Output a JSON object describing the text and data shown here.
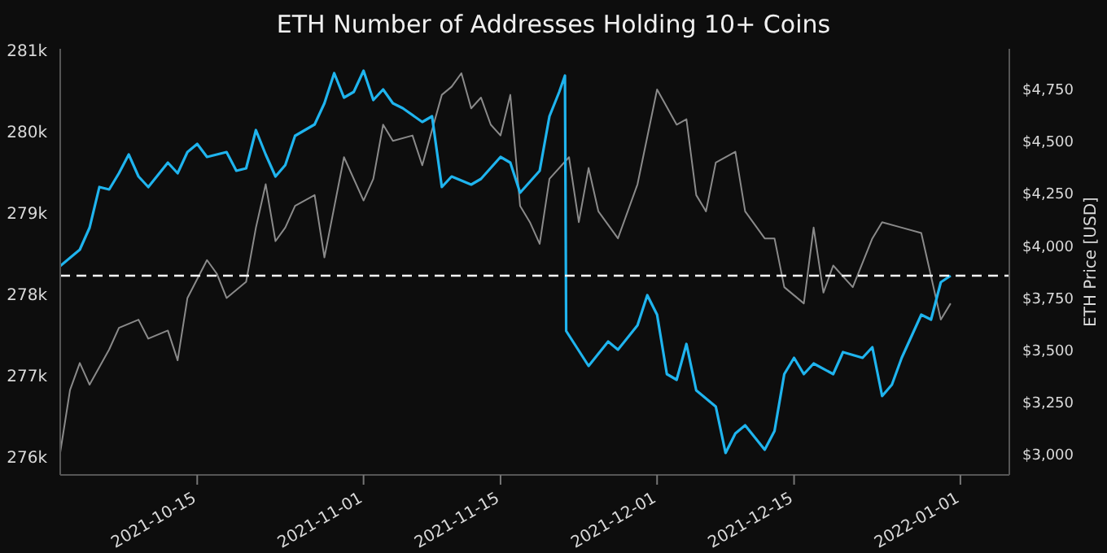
{
  "chart_data": {
    "type": "line",
    "title": "ETH Number of Addresses Holding 10+ Coins",
    "y2label": "ETH Price [USD]",
    "xlim": [
      "2021-10-01",
      "2022-01-06"
    ],
    "xticks": [
      "2021-10-15",
      "2021-11-01",
      "2021-11-15",
      "2021-12-01",
      "2021-12-15",
      "2022-01-01"
    ],
    "ylim": [
      275780,
      281020
    ],
    "yticks": [
      {
        "value": 276000,
        "label": "276k"
      },
      {
        "value": 277000,
        "label": "277k"
      },
      {
        "value": 278000,
        "label": "278k"
      },
      {
        "value": 279000,
        "label": "279k"
      },
      {
        "value": 280000,
        "label": "280k"
      },
      {
        "value": 281000,
        "label": "281k"
      }
    ],
    "y2lim": [
      2900,
      4945
    ],
    "y2ticks": [
      {
        "value": 3000,
        "label": "$3,000"
      },
      {
        "value": 3250,
        "label": "$3,250"
      },
      {
        "value": 3500,
        "label": "$3,500"
      },
      {
        "value": 3750,
        "label": "$3,750"
      },
      {
        "value": 4000,
        "label": "$4,000"
      },
      {
        "value": 4250,
        "label": "$4,250"
      },
      {
        "value": 4500,
        "label": "$4,500"
      },
      {
        "value": 4750,
        "label": "$4,750"
      }
    ],
    "ref_lines": [
      {
        "axis": "y",
        "value": 278230,
        "color": "#ffffff",
        "line_style": "dashed"
      }
    ],
    "series": [
      {
        "color": "#8a8a8a",
        "axis": "y2",
        "x": [
          "2021-10-01",
          "2021-10-02",
          "2021-10-03",
          "2021-10-04",
          "2021-10-06",
          "2021-10-07",
          "2021-10-09",
          "2021-10-10",
          "2021-10-12",
          "2021-10-13",
          "2021-10-14",
          "2021-10-16",
          "2021-10-17",
          "2021-10-18",
          "2021-10-20",
          "2021-10-21",
          "2021-10-22",
          "2021-10-23",
          "2021-10-24",
          "2021-10-25",
          "2021-10-27",
          "2021-10-28",
          "2021-10-30",
          "2021-11-01",
          "2021-11-02",
          "2021-11-03",
          "2021-11-04",
          "2021-11-06",
          "2021-11-07",
          "2021-11-09",
          "2021-11-10",
          "2021-11-11",
          "2021-11-12",
          "2021-11-13",
          "2021-11-14",
          "2021-11-15",
          "2021-11-16",
          "2021-11-17",
          "2021-11-18",
          "2021-11-19",
          "2021-11-20",
          "2021-11-22",
          "2021-11-23",
          "2021-11-24",
          "2021-11-25",
          "2021-11-27",
          "2021-11-28",
          "2021-11-29",
          "2021-12-01",
          "2021-12-03",
          "2021-12-04",
          "2021-12-05",
          "2021-12-06",
          "2021-12-07",
          "2021-12-09",
          "2021-12-10",
          "2021-12-12",
          "2021-12-13",
          "2021-12-14",
          "2021-12-16",
          "2021-12-17",
          "2021-12-18",
          "2021-12-19",
          "2021-12-21",
          "2021-12-23",
          "2021-12-24",
          "2021-12-26",
          "2021-12-28",
          "2021-12-29",
          "2021-12-30",
          "2021-12-31"
        ],
        "values": [
          3008,
          3307,
          3437,
          3333,
          3502,
          3606,
          3645,
          3554,
          3593,
          3450,
          3749,
          3931,
          3866,
          3749,
          3827,
          4087,
          4295,
          4022,
          4087,
          4191,
          4243,
          3944,
          4425,
          4217,
          4321,
          4581,
          4503,
          4529,
          4386,
          4724,
          4763,
          4828,
          4659,
          4711,
          4581,
          4529,
          4724,
          4191,
          4113,
          4009,
          4321,
          4425,
          4113,
          4373,
          4165,
          4035,
          4165,
          4295,
          4750,
          4581,
          4607,
          4243,
          4165,
          4399,
          4451,
          4165,
          4035,
          4035,
          3801,
          3723,
          4087,
          3775,
          3905,
          3801,
          4035,
          4113,
          4087,
          4061,
          3853,
          3645,
          3723
        ]
      },
      {
        "color": "#1fb4ee",
        "x": [
          "2021-10-01",
          "2021-10-03",
          "2021-10-04",
          "2021-10-05",
          "2021-10-06",
          "2021-10-07",
          "2021-10-08",
          "2021-10-09",
          "2021-10-10",
          "2021-10-12",
          "2021-10-13",
          "2021-10-14",
          "2021-10-15",
          "2021-10-16",
          "2021-10-18",
          "2021-10-19",
          "2021-10-20",
          "2021-10-21",
          "2021-10-22",
          "2021-10-23",
          "2021-10-24",
          "2021-10-25",
          "2021-10-27",
          "2021-10-28",
          "2021-10-29",
          "2021-10-30",
          "2021-10-31",
          "2021-11-01",
          "2021-11-02",
          "2021-11-03",
          "2021-11-04",
          "2021-11-05",
          "2021-11-07",
          "2021-11-08",
          "2021-11-09",
          "2021-11-10",
          "2021-11-12",
          "2021-11-13",
          "2021-11-15",
          "2021-11-16",
          "2021-11-17",
          "2021-11-19",
          "2021-11-20",
          "2021-11-21",
          "2021-11-21T14:00",
          "2021-11-21T17:00",
          "2021-11-24",
          "2021-11-26",
          "2021-11-27",
          "2021-11-29",
          "2021-11-30",
          "2021-12-01",
          "2021-12-02",
          "2021-12-03",
          "2021-12-04",
          "2021-12-05",
          "2021-12-07",
          "2021-12-08",
          "2021-12-09",
          "2021-12-10",
          "2021-12-12",
          "2021-12-13",
          "2021-12-14",
          "2021-12-15",
          "2021-12-16",
          "2021-12-17",
          "2021-12-19",
          "2021-12-20",
          "2021-12-22",
          "2021-12-23",
          "2021-12-24",
          "2021-12-25",
          "2021-12-26",
          "2021-12-28",
          "2021-12-29",
          "2021-12-30",
          "2021-12-31"
        ],
        "values": [
          278350,
          278550,
          278820,
          279320,
          279290,
          279490,
          279720,
          279450,
          279320,
          279620,
          279490,
          279750,
          279850,
          279690,
          279750,
          279520,
          279550,
          280020,
          279720,
          279450,
          279590,
          279950,
          280090,
          280350,
          280720,
          280420,
          280490,
          280750,
          280390,
          280520,
          280350,
          280290,
          280120,
          280190,
          279320,
          279450,
          279350,
          279420,
          279690,
          279620,
          279250,
          279520,
          280190,
          280490,
          280690,
          277550,
          277120,
          277420,
          277320,
          277620,
          277990,
          277750,
          277020,
          276950,
          277390,
          276820,
          276620,
          276050,
          276290,
          276390,
          276090,
          276320,
          277020,
          277220,
          277020,
          277150,
          277020,
          277290,
          277220,
          277350,
          276750,
          276890,
          277220,
          277750,
          277690,
          278150,
          278230
        ]
      }
    ]
  }
}
